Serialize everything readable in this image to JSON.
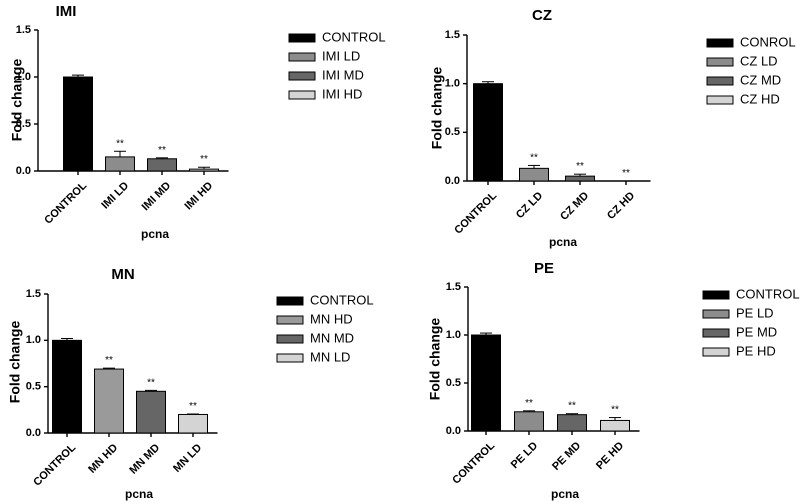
{
  "chart_data": [
    {
      "type": "bar",
      "title": "IMI",
      "xlabel": "pcna",
      "ylabel": "Fold change",
      "ylim": [
        0,
        1.5
      ],
      "yticks": [
        "0.0",
        "0.5",
        "1.0",
        "1.5"
      ],
      "categories": [
        "CONTROL",
        "IMI LD",
        "IMI MD",
        "IMI HD"
      ],
      "values": [
        1.0,
        0.15,
        0.13,
        0.02
      ],
      "errors": [
        0.02,
        0.06,
        0.01,
        0.02
      ],
      "significance": [
        "",
        "**",
        "**",
        "**"
      ],
      "colors": [
        "#000000",
        "#8c8c8c",
        "#666666",
        "#d4d4d4"
      ],
      "legend": [
        "CONTROL",
        "IMI LD",
        "IMI MD",
        "IMI HD"
      ],
      "legend_position": "right"
    },
    {
      "type": "bar",
      "title": "CZ",
      "xlabel": "pcna",
      "ylabel": "Fold change",
      "ylim": [
        0,
        1.5
      ],
      "yticks": [
        "0.0",
        "0.5",
        "1.0",
        "1.5"
      ],
      "categories": [
        "CONTROL",
        "CZ LD",
        "CZ MD",
        "CZ HD"
      ],
      "values": [
        1.0,
        0.13,
        0.05,
        0.0
      ],
      "errors": [
        0.02,
        0.03,
        0.02,
        0.0
      ],
      "significance": [
        "",
        "**",
        "**",
        "**"
      ],
      "colors": [
        "#000000",
        "#8c8c8c",
        "#666666",
        "#d4d4d4"
      ],
      "legend": [
        "CONROL",
        "CZ LD",
        "CZ MD",
        "CZ HD"
      ],
      "legend_position": "right"
    },
    {
      "type": "bar",
      "title": "MN",
      "xlabel": "pcna",
      "ylabel": "Fold change",
      "ylim": [
        0,
        1.5
      ],
      "yticks": [
        "0.0",
        "0.5",
        "1.0",
        "1.5"
      ],
      "categories": [
        "CONTROL",
        "MN HD",
        "MN MD",
        "MN LD"
      ],
      "values": [
        1.0,
        0.69,
        0.45,
        0.2
      ],
      "errors": [
        0.02,
        0.01,
        0.01,
        0.005
      ],
      "significance": [
        "",
        "**",
        "**",
        "**"
      ],
      "colors": [
        "#000000",
        "#9a9a9a",
        "#666666",
        "#d4d4d4"
      ],
      "legend": [
        "CONTROL",
        "MN HD",
        "MN MD",
        "MN LD"
      ],
      "legend_position": "right"
    },
    {
      "type": "bar",
      "title": "PE",
      "xlabel": "pcna",
      "ylabel": "Fold change",
      "ylim": [
        0,
        1.5
      ],
      "yticks": [
        "0.0",
        "0.5",
        "1.0",
        "1.5"
      ],
      "categories": [
        "CONTROL",
        "PE LD",
        "PE MD",
        "PE HD"
      ],
      "values": [
        1.0,
        0.2,
        0.17,
        0.11
      ],
      "errors": [
        0.02,
        0.01,
        0.01,
        0.03
      ],
      "significance": [
        "",
        "**",
        "**",
        "**"
      ],
      "colors": [
        "#000000",
        "#8c8c8c",
        "#666666",
        "#d4d4d4"
      ],
      "legend": [
        "CONTROL",
        "PE LD",
        "PE MD",
        "PE HD"
      ],
      "legend_position": "right"
    }
  ]
}
